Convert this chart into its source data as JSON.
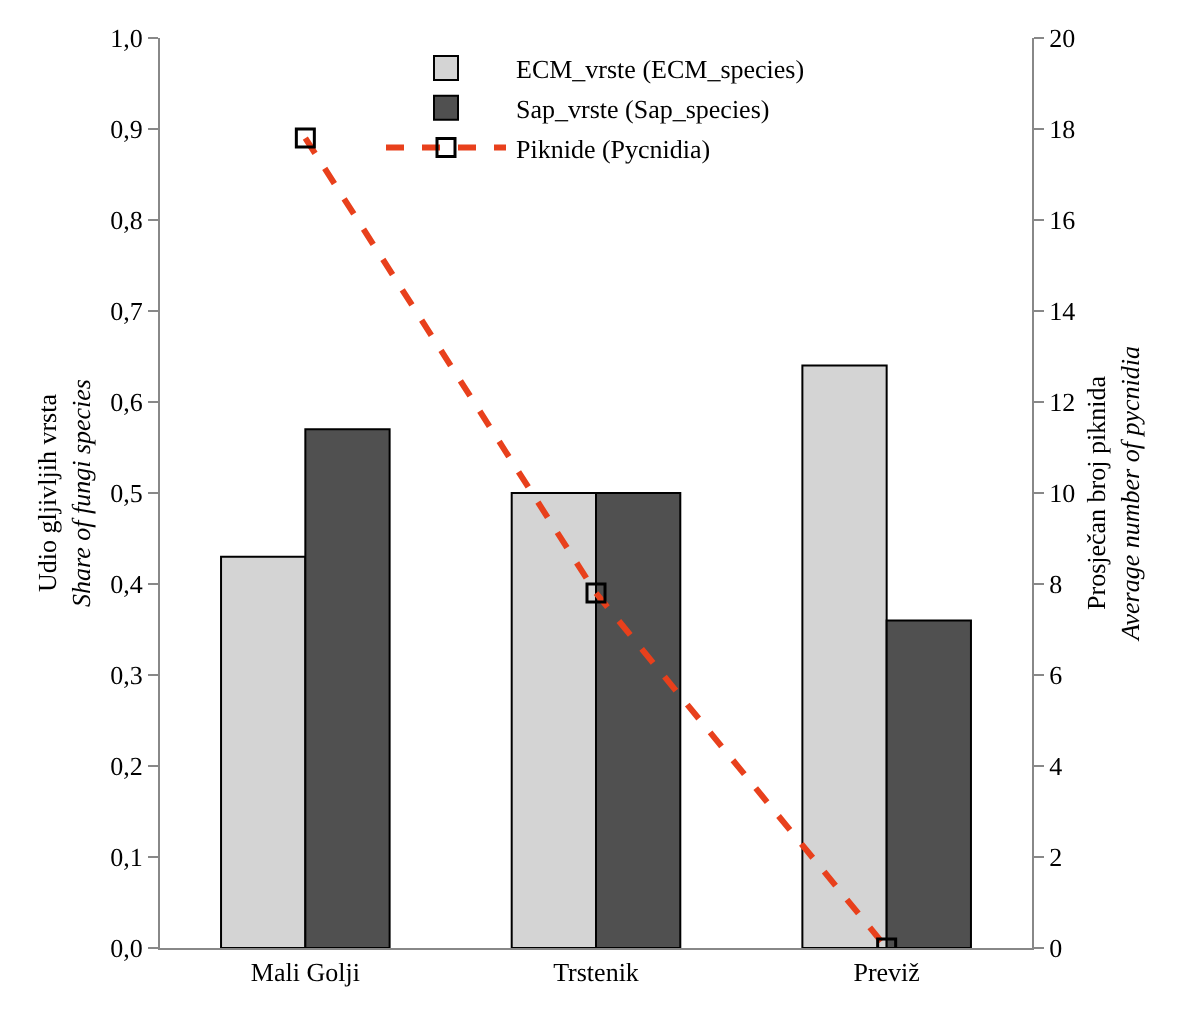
{
  "chart_data": {
    "type": "bar",
    "ylabel": "Udio gljivljih vrsta\nShare of fungi species",
    "y2label": "Prosječan broj piknida\nAverage number of pycnidia",
    "categories": [
      "Mali Golji",
      "Trstenik",
      "Previž"
    ],
    "series": [
      {
        "name": "ECM_vrste (ECM_species)",
        "color": "#d4d4d4",
        "values": [
          0.43,
          0.5,
          0.64
        ]
      },
      {
        "name": "Sap_vrste (Sap_species)",
        "color": "#505050",
        "values": [
          0.57,
          0.5,
          0.36
        ]
      },
      {
        "name": "Piknide (Pycnidia)",
        "type": "line",
        "axis": "y2",
        "color": "#e8401c",
        "line_style": "dashed",
        "marker": "square",
        "values": [
          17.8,
          7.8,
          0
        ]
      }
    ],
    "ylim": [
      0,
      1
    ],
    "yticks": [
      {
        "value": 0,
        "label": "0,0"
      },
      {
        "value": 0.1,
        "label": "0,1"
      },
      {
        "value": 0.2,
        "label": "0,2"
      },
      {
        "value": 0.3,
        "label": "0,3"
      },
      {
        "value": 0.4,
        "label": "0,4"
      },
      {
        "value": 0.5,
        "label": "0,5"
      },
      {
        "value": 0.6,
        "label": "0,6"
      },
      {
        "value": 0.7,
        "label": "0,7"
      },
      {
        "value": 0.8,
        "label": "0,8"
      },
      {
        "value": 0.9,
        "label": "0,9"
      },
      {
        "value": 1,
        "label": "1,0"
      }
    ],
    "y2lim": [
      0,
      20
    ],
    "y2ticks": [
      0,
      2,
      4,
      6,
      8,
      10,
      12,
      14,
      16,
      18,
      20
    ],
    "legend": "top"
  }
}
